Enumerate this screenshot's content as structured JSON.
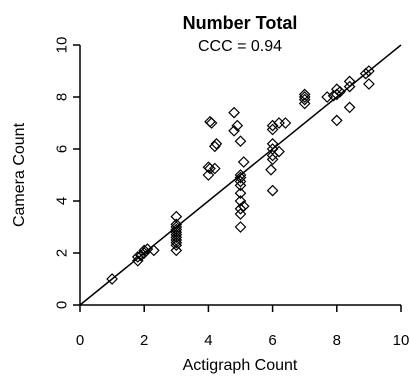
{
  "chart_data": {
    "type": "scatter",
    "title": "Number Total",
    "subtitle": "CCC = 0.94",
    "xlabel": "Actigraph Count",
    "ylabel": "Camera Count",
    "xlim": [
      0,
      10
    ],
    "ylim": [
      0,
      10
    ],
    "x_ticks": [
      "0",
      "2",
      "4",
      "6",
      "8",
      "10"
    ],
    "y_ticks": [
      "0",
      "2",
      "4",
      "6",
      "8",
      "10"
    ],
    "grid": false,
    "legend": "none",
    "marker": "diamond-open",
    "reference_line": {
      "type": "identity",
      "from": [
        0,
        0
      ],
      "to": [
        10,
        10
      ]
    },
    "points": [
      [
        1.0,
        1.0
      ],
      [
        1.8,
        1.7
      ],
      [
        1.8,
        1.85
      ],
      [
        1.9,
        1.9
      ],
      [
        2.0,
        2.0
      ],
      [
        2.0,
        2.1
      ],
      [
        2.1,
        2.15
      ],
      [
        2.3,
        2.1
      ],
      [
        3.0,
        2.1
      ],
      [
        3.0,
        2.3
      ],
      [
        3.0,
        2.4
      ],
      [
        3.0,
        2.5
      ],
      [
        3.0,
        2.6
      ],
      [
        3.0,
        2.7
      ],
      [
        3.0,
        2.8
      ],
      [
        3.0,
        2.9
      ],
      [
        3.0,
        3.0
      ],
      [
        3.0,
        3.1
      ],
      [
        3.0,
        3.4
      ],
      [
        4.0,
        5.0
      ],
      [
        4.0,
        5.3
      ],
      [
        4.05,
        5.25
      ],
      [
        4.1,
        7.0
      ],
      [
        4.05,
        7.05
      ],
      [
        4.2,
        5.25
      ],
      [
        4.2,
        6.1
      ],
      [
        4.25,
        6.2
      ],
      [
        4.8,
        7.4
      ],
      [
        4.8,
        6.7
      ],
      [
        4.9,
        6.9
      ],
      [
        5.0,
        6.3
      ],
      [
        5.0,
        3.0
      ],
      [
        5.0,
        3.5
      ],
      [
        5.0,
        3.7
      ],
      [
        5.0,
        4.0
      ],
      [
        5.0,
        4.3
      ],
      [
        5.0,
        4.6
      ],
      [
        5.0,
        4.75
      ],
      [
        5.0,
        4.9
      ],
      [
        5.0,
        5.0
      ],
      [
        5.1,
        3.8
      ],
      [
        5.1,
        5.5
      ],
      [
        6.0,
        4.4
      ],
      [
        5.95,
        5.2
      ],
      [
        6.0,
        5.6
      ],
      [
        6.0,
        5.75
      ],
      [
        6.0,
        6.0
      ],
      [
        6.0,
        6.2
      ],
      [
        6.0,
        6.75
      ],
      [
        6.0,
        6.9
      ],
      [
        6.2,
        5.9
      ],
      [
        6.2,
        7.0
      ],
      [
        6.4,
        7.0
      ],
      [
        7.0,
        7.75
      ],
      [
        7.0,
        7.9
      ],
      [
        7.0,
        8.0
      ],
      [
        7.0,
        8.1
      ],
      [
        7.7,
        8.0
      ],
      [
        7.9,
        8.05
      ],
      [
        8.0,
        7.1
      ],
      [
        8.0,
        8.1
      ],
      [
        8.0,
        8.3
      ],
      [
        8.1,
        8.2
      ],
      [
        8.4,
        8.4
      ],
      [
        8.4,
        8.6
      ],
      [
        8.4,
        7.6
      ],
      [
        8.9,
        8.9
      ],
      [
        9.0,
        8.5
      ],
      [
        9.0,
        9.0
      ]
    ]
  }
}
